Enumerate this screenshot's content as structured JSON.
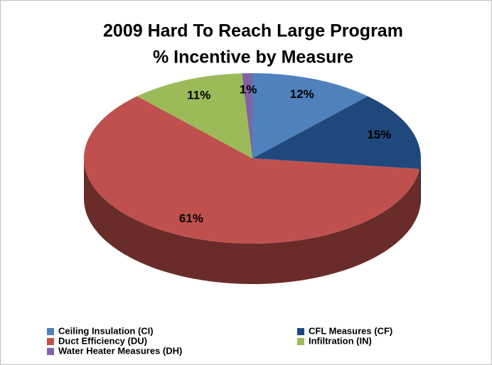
{
  "chart_data": {
    "type": "pie",
    "title": "2009 Hard To Reach Large Program",
    "subtitle": "% Incentive by Measure",
    "categories": [
      "Ceiling Insulation (CI)",
      "CFL Measures (CF)",
      "Duct Efficiency (DU)",
      "Infiltration (IN)",
      "Water Heater Measures (DH)"
    ],
    "values": [
      12,
      15,
      61,
      11,
      1
    ],
    "value_labels": [
      "12%",
      "15%",
      "61%",
      "11%",
      "1%"
    ],
    "colors": [
      "#4f81bd",
      "#1f497d",
      "#c0504d",
      "#9bbb59",
      "#8064a2"
    ],
    "legend": "bottom"
  }
}
